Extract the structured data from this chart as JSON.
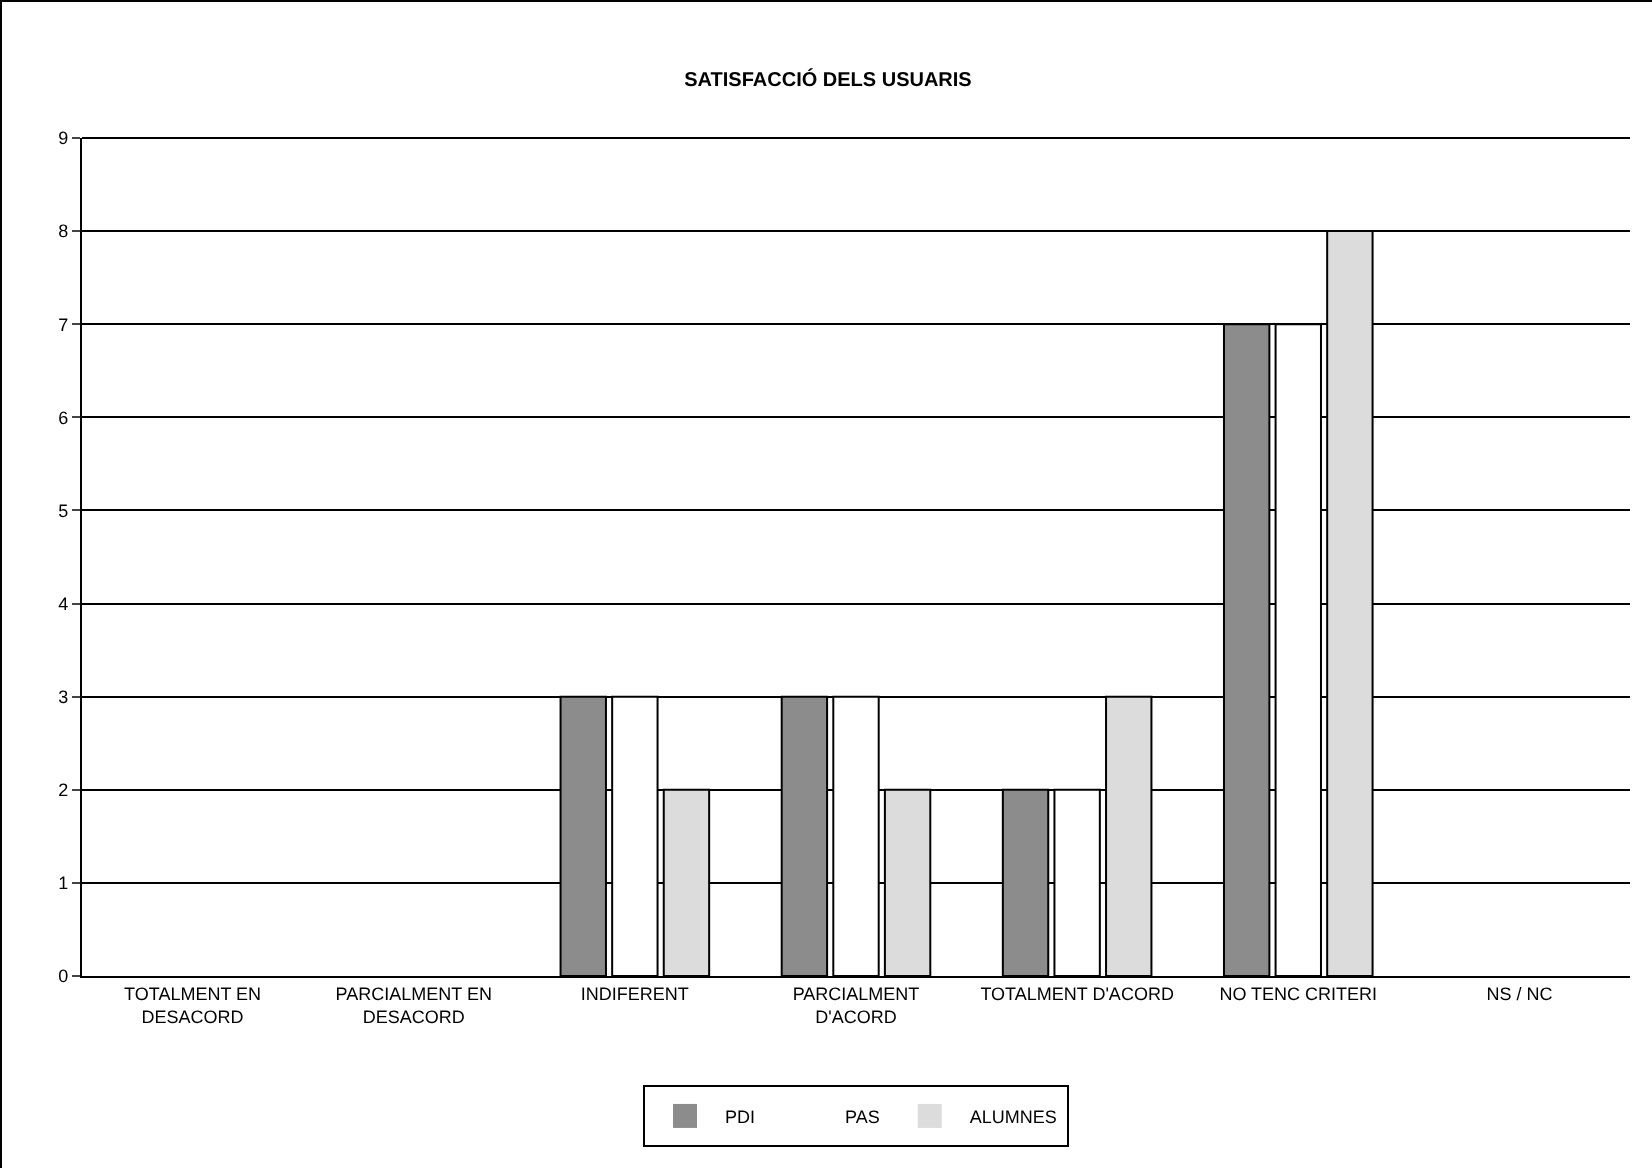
{
  "chart_data": {
    "type": "bar",
    "title": "SATISFACCIÓ DELS USUARIS",
    "categories": [
      "TOTALMENT EN DESACORD",
      "PARCIALMENT EN DESACORD",
      "INDIFERENT",
      "PARCIALMENT D'ACORD",
      "TOTALMENT D'ACORD",
      "NO TENC CRITERI",
      "NS / NC"
    ],
    "series": [
      {
        "name": "PDI",
        "color": "#8c8c8c",
        "values": [
          0,
          0,
          3,
          3,
          2,
          7,
          0
        ]
      },
      {
        "name": "PAS",
        "color": "#ffffff",
        "values": [
          0,
          0,
          3,
          3,
          2,
          7,
          0
        ]
      },
      {
        "name": "ALUMNES",
        "color": "#dcdcdc",
        "values": [
          0,
          0,
          2,
          2,
          3,
          8,
          0
        ]
      }
    ],
    "ylim": [
      0,
      9
    ],
    "yticks": [
      0,
      1,
      2,
      3,
      4,
      5,
      6,
      7,
      8,
      9
    ],
    "grid": "y",
    "legend": "bottom"
  }
}
